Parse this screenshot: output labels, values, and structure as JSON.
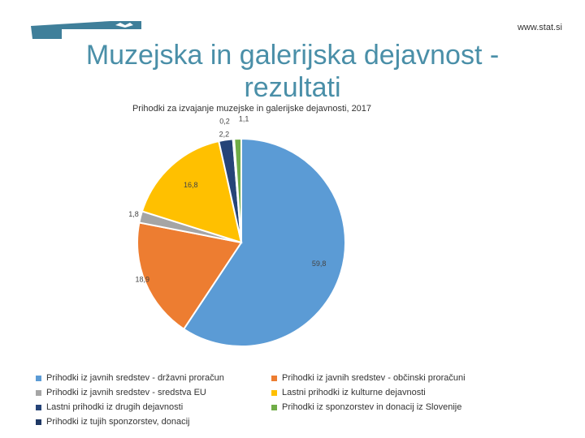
{
  "header": {
    "site": "www.stat.si",
    "title_line1": "Muzejska in galerijska dejavnost -",
    "title_line2": "rezultati"
  },
  "chart_data": {
    "type": "pie",
    "title": "Prihodki za izvajanje muzejske in galerijske dejavnosti, 2017",
    "categories": [
      "Prihodki iz javnih sredstev - državni proračun",
      "Prihodki iz javnih sredstev - občinski proračuni",
      "Prihodki iz javnih sredstev - sredstva EU",
      "Lastni prihodki iz kulturne dejavnosti",
      "Lastni prihodki iz drugih dejavnosti",
      "Prihodki iz sponzorstev in donacij iz Slovenije",
      "Prihodki iz tujih sponzorstev, donacij"
    ],
    "slices": [
      {
        "label": "Prihodki iz javnih sredstev - državni proračun",
        "value": 59.8,
        "value_label": "59,8",
        "color": "#5b9bd5"
      },
      {
        "label": "Prihodki iz javnih sredstev - občinski proračuni",
        "value": 18.9,
        "value_label": "18,9",
        "color": "#ed7d31"
      },
      {
        "label": "Prihodki iz javnih sredstev - sredstva EU",
        "value": 1.8,
        "value_label": "1,8",
        "color": "#a5a5a5"
      },
      {
        "label": "Lastni prihodki iz kulturne dejavnosti",
        "value": 16.8,
        "value_label": "16,8",
        "color": "#ffc000"
      },
      {
        "label": "Lastni prihodki iz drugih dejavnosti",
        "value": 2.2,
        "value_label": "2,2",
        "color": "#264478"
      },
      {
        "label": "Prihodki iz tujih sponzorstev, donacij",
        "value": 0.2,
        "value_label": "0,2",
        "color": "#1f3864"
      },
      {
        "label": "Prihodki iz sponzorstev in donacij iz Slovenije",
        "value": 1.1,
        "value_label": "1,1",
        "color": "#70ad47"
      }
    ],
    "legend": [
      {
        "label": "Prihodki iz javnih sredstev - državni proračun",
        "color": "#5b9bd5"
      },
      {
        "label": "Prihodki iz javnih sredstev - občinski proračuni",
        "color": "#ed7d31"
      },
      {
        "label": "Prihodki iz javnih sredstev - sredstva EU",
        "color": "#a5a5a5"
      },
      {
        "label": "Lastni prihodki iz kulturne dejavnosti",
        "color": "#ffc000"
      },
      {
        "label": "Lastni prihodki iz drugih dejavnosti",
        "color": "#264478"
      },
      {
        "label": "Prihodki iz sponzorstev in donacij iz Slovenije",
        "color": "#70ad47"
      },
      {
        "label": "Prihodki iz tujih sponzorstev, donacij",
        "color": "#1f3864"
      }
    ],
    "legend_position": "bottom"
  }
}
